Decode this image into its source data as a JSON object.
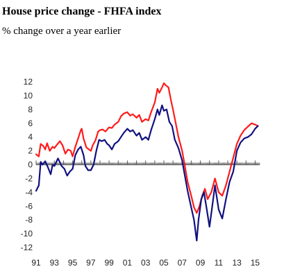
{
  "title": "House price change - FHFA index",
  "subtitle": "% change over a year earlier",
  "colors": {
    "series_a": "#ff1a1a",
    "series_b": "#101080",
    "axis": "#555555",
    "zero_line": "#666666"
  },
  "chart_data": {
    "type": "line",
    "title": "House price change - FHFA index",
    "subtitle": "% change over a year earlier",
    "xlabel": "",
    "ylabel": "",
    "xlim": [
      1991,
      2015.5
    ],
    "ylim": [
      -12,
      12
    ],
    "x_ticks": [
      1991,
      1993,
      1995,
      1997,
      1999,
      2001,
      2003,
      2005,
      2007,
      2009,
      2011,
      2013,
      2015
    ],
    "x_tick_labels": [
      "91",
      "93",
      "95",
      "97",
      "99",
      "01",
      "03",
      "05",
      "07",
      "09",
      "11",
      "13",
      "15"
    ],
    "y_ticks": [
      12,
      10,
      8,
      6,
      4,
      2,
      0,
      -2,
      -4,
      -6,
      -8,
      -10,
      -12
    ],
    "y_tick_labels": [
      "12",
      "10",
      "8",
      "6",
      "4",
      "2",
      "0",
      "-2",
      "-4",
      "-6",
      "-8",
      "-10",
      "-12"
    ],
    "grid": false,
    "legend": "none",
    "series": [
      {
        "color": "#ff1a1a",
        "points": [
          [
            1991.0,
            1.5
          ],
          [
            1991.3,
            1.2
          ],
          [
            1991.5,
            3.0
          ],
          [
            1991.8,
            2.7
          ],
          [
            1992.0,
            2.2
          ],
          [
            1992.2,
            3.1
          ],
          [
            1992.5,
            2.0
          ],
          [
            1992.8,
            2.6
          ],
          [
            1993.0,
            2.4
          ],
          [
            1993.3,
            2.9
          ],
          [
            1993.6,
            3.4
          ],
          [
            1993.9,
            2.8
          ],
          [
            1994.2,
            1.6
          ],
          [
            1994.5,
            2.2
          ],
          [
            1994.8,
            2.0
          ],
          [
            1995.0,
            1.2
          ],
          [
            1995.3,
            2.6
          ],
          [
            1995.6,
            3.8
          ],
          [
            1995.9,
            5.0
          ],
          [
            1996.0,
            5.2
          ],
          [
            1996.2,
            3.8
          ],
          [
            1996.5,
            2.5
          ],
          [
            1996.8,
            2.2
          ],
          [
            1997.0,
            2.0
          ],
          [
            1997.2,
            2.8
          ],
          [
            1997.5,
            3.5
          ],
          [
            1997.8,
            4.8
          ],
          [
            1998.0,
            5.0
          ],
          [
            1998.3,
            5.1
          ],
          [
            1998.6,
            4.8
          ],
          [
            1999.0,
            5.4
          ],
          [
            1999.3,
            5.3
          ],
          [
            1999.6,
            5.8
          ],
          [
            2000.0,
            6.2
          ],
          [
            2000.3,
            7.0
          ],
          [
            2000.6,
            7.4
          ],
          [
            2001.0,
            7.6
          ],
          [
            2001.3,
            7.1
          ],
          [
            2001.6,
            7.3
          ],
          [
            2002.0,
            6.8
          ],
          [
            2002.3,
            7.2
          ],
          [
            2002.6,
            6.2
          ],
          [
            2003.0,
            6.6
          ],
          [
            2003.3,
            6.4
          ],
          [
            2003.6,
            7.6
          ],
          [
            2004.0,
            9.0
          ],
          [
            2004.3,
            11.0
          ],
          [
            2004.5,
            10.4
          ],
          [
            2004.8,
            11.2
          ],
          [
            2005.0,
            11.8
          ],
          [
            2005.2,
            11.5
          ],
          [
            2005.5,
            11.2
          ],
          [
            2005.8,
            9.2
          ],
          [
            2006.0,
            8.0
          ],
          [
            2006.3,
            6.0
          ],
          [
            2006.6,
            4.0
          ],
          [
            2007.0,
            2.0
          ],
          [
            2007.3,
            -0.2
          ],
          [
            2007.6,
            -2.5
          ],
          [
            2008.0,
            -4.5
          ],
          [
            2008.3,
            -6.2
          ],
          [
            2008.6,
            -7.0
          ],
          [
            2008.9,
            -6.0
          ],
          [
            2009.2,
            -4.5
          ],
          [
            2009.5,
            -3.5
          ],
          [
            2009.8,
            -5.0
          ],
          [
            2010.2,
            -4.0
          ],
          [
            2010.6,
            -2.0
          ],
          [
            2011.0,
            -4.0
          ],
          [
            2011.4,
            -4.5
          ],
          [
            2011.8,
            -3.0
          ],
          [
            2012.2,
            -1.0
          ],
          [
            2012.6,
            1.0
          ],
          [
            2013.0,
            3.0
          ],
          [
            2013.4,
            4.2
          ],
          [
            2013.8,
            5.0
          ],
          [
            2014.2,
            5.5
          ],
          [
            2014.6,
            6.0
          ],
          [
            2015.0,
            5.8
          ],
          [
            2015.3,
            5.6
          ]
        ]
      },
      {
        "color": "#101080",
        "points": [
          [
            1991.0,
            -3.8
          ],
          [
            1991.3,
            -3.0
          ],
          [
            1991.5,
            0.4
          ],
          [
            1991.7,
            0.0
          ],
          [
            1992.0,
            0.5
          ],
          [
            1992.3,
            -0.4
          ],
          [
            1992.6,
            -1.4
          ],
          [
            1992.8,
            0.0
          ],
          [
            1993.0,
            -0.2
          ],
          [
            1993.4,
            0.9
          ],
          [
            1993.8,
            -0.2
          ],
          [
            1994.1,
            -0.6
          ],
          [
            1994.4,
            -1.6
          ],
          [
            1994.7,
            -1.0
          ],
          [
            1995.0,
            -0.6
          ],
          [
            1995.3,
            1.4
          ],
          [
            1995.6,
            2.2
          ],
          [
            1995.9,
            2.6
          ],
          [
            1996.2,
            1.4
          ],
          [
            1996.4,
            -0.2
          ],
          [
            1996.7,
            -0.8
          ],
          [
            1997.0,
            -0.8
          ],
          [
            1997.3,
            0.0
          ],
          [
            1997.6,
            2.0
          ],
          [
            1997.9,
            3.6
          ],
          [
            1998.2,
            3.4
          ],
          [
            1998.5,
            3.6
          ],
          [
            1998.8,
            3.0
          ],
          [
            1999.0,
            2.8
          ],
          [
            1999.3,
            2.2
          ],
          [
            1999.6,
            3.0
          ],
          [
            2000.0,
            3.4
          ],
          [
            2000.3,
            4.0
          ],
          [
            2000.6,
            4.6
          ],
          [
            2001.0,
            5.2
          ],
          [
            2001.3,
            4.8
          ],
          [
            2001.6,
            5.0
          ],
          [
            2002.0,
            4.2
          ],
          [
            2002.3,
            4.6
          ],
          [
            2002.6,
            3.6
          ],
          [
            2003.0,
            4.0
          ],
          [
            2003.3,
            3.6
          ],
          [
            2003.6,
            5.0
          ],
          [
            2004.0,
            6.6
          ],
          [
            2004.3,
            8.0
          ],
          [
            2004.5,
            7.2
          ],
          [
            2004.8,
            8.6
          ],
          [
            2005.0,
            7.8
          ],
          [
            2005.3,
            8.0
          ],
          [
            2005.6,
            6.2
          ],
          [
            2005.9,
            5.6
          ],
          [
            2006.2,
            3.6
          ],
          [
            2006.6,
            2.4
          ],
          [
            2007.0,
            0.6
          ],
          [
            2007.3,
            -1.6
          ],
          [
            2007.6,
            -3.8
          ],
          [
            2008.0,
            -6.2
          ],
          [
            2008.3,
            -8.0
          ],
          [
            2008.6,
            -11.0
          ],
          [
            2008.8,
            -8.0
          ],
          [
            2009.1,
            -5.0
          ],
          [
            2009.4,
            -4.0
          ],
          [
            2009.7,
            -6.5
          ],
          [
            2010.0,
            -9.0
          ],
          [
            2010.3,
            -6.0
          ],
          [
            2010.6,
            -3.0
          ],
          [
            2011.0,
            -6.5
          ],
          [
            2011.4,
            -7.8
          ],
          [
            2011.8,
            -5.0
          ],
          [
            2012.2,
            -2.5
          ],
          [
            2012.6,
            -1.0
          ],
          [
            2013.0,
            2.0
          ],
          [
            2013.4,
            3.2
          ],
          [
            2013.8,
            3.8
          ],
          [
            2014.2,
            4.0
          ],
          [
            2014.6,
            4.4
          ],
          [
            2015.0,
            5.2
          ],
          [
            2015.3,
            5.6
          ]
        ]
      }
    ]
  }
}
